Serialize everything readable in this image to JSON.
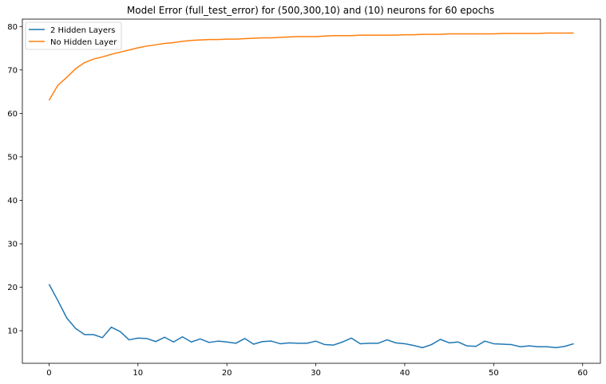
{
  "chart_data": {
    "type": "line",
    "title": "Model Error (full_test_error) for (500,300,10) and (10) neurons for 60 epochs",
    "xlabel": "",
    "ylabel": "",
    "xlim": [
      -3,
      62
    ],
    "ylim": [
      2.5,
      81.7
    ],
    "xticks": [
      0,
      10,
      20,
      30,
      40,
      50,
      60
    ],
    "yticks": [
      10,
      20,
      30,
      40,
      50,
      60,
      70,
      80
    ],
    "grid": false,
    "legend_position": "top-left",
    "x": [
      0,
      1,
      2,
      3,
      4,
      5,
      6,
      7,
      8,
      9,
      10,
      11,
      12,
      13,
      14,
      15,
      16,
      17,
      18,
      19,
      20,
      21,
      22,
      23,
      24,
      25,
      26,
      27,
      28,
      29,
      30,
      31,
      32,
      33,
      34,
      35,
      36,
      37,
      38,
      39,
      40,
      41,
      42,
      43,
      44,
      45,
      46,
      47,
      48,
      49,
      50,
      51,
      52,
      53,
      54,
      55,
      56,
      57,
      58,
      59
    ],
    "series": [
      {
        "name": "2 Hidden Layers",
        "color": "#1f77b4",
        "values": [
          20.7,
          16.9,
          12.9,
          10.5,
          9.1,
          9.1,
          8.4,
          10.8,
          9.8,
          7.9,
          8.3,
          8.2,
          7.5,
          8.5,
          7.4,
          8.6,
          7.4,
          8.1,
          7.3,
          7.6,
          7.4,
          7.1,
          8.2,
          6.9,
          7.5,
          7.6,
          7.0,
          7.2,
          7.1,
          7.1,
          7.6,
          6.8,
          6.7,
          7.4,
          8.3,
          7.0,
          7.1,
          7.1,
          7.9,
          7.2,
          7.0,
          6.6,
          6.1,
          6.8,
          8.0,
          7.2,
          7.4,
          6.5,
          6.4,
          7.6,
          7.0,
          6.9,
          6.8,
          6.3,
          6.5,
          6.3,
          6.3,
          6.1,
          6.4,
          7.0
        ]
      },
      {
        "name": "No Hidden Layer",
        "color": "#ff7f0e",
        "values": [
          63.0,
          66.5,
          68.3,
          70.3,
          71.7,
          72.5,
          73.0,
          73.6,
          74.1,
          74.6,
          75.1,
          75.5,
          75.8,
          76.1,
          76.3,
          76.6,
          76.8,
          76.9,
          77.0,
          77.0,
          77.1,
          77.1,
          77.2,
          77.3,
          77.4,
          77.4,
          77.5,
          77.6,
          77.7,
          77.7,
          77.7,
          77.8,
          77.9,
          77.9,
          77.9,
          78.0,
          78.0,
          78.0,
          78.0,
          78.0,
          78.1,
          78.1,
          78.2,
          78.2,
          78.2,
          78.3,
          78.3,
          78.3,
          78.3,
          78.3,
          78.3,
          78.4,
          78.4,
          78.4,
          78.4,
          78.4,
          78.5,
          78.5,
          78.5,
          78.5
        ]
      }
    ]
  }
}
